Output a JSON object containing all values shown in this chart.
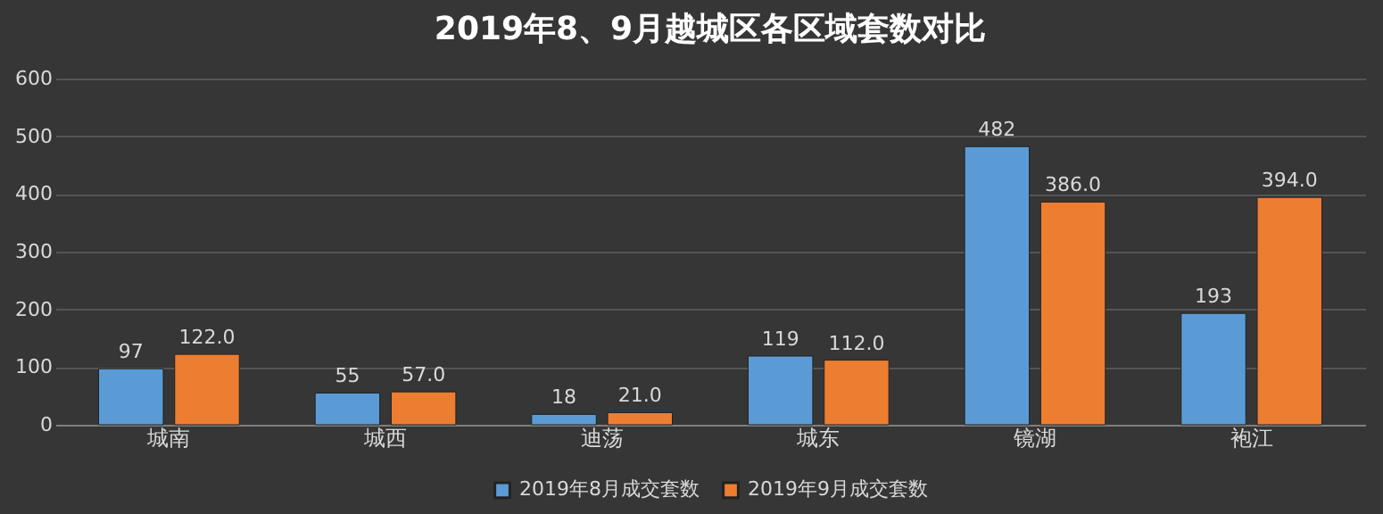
{
  "chart_data": {
    "type": "bar",
    "title": "2019年8、9月越城区各区域套数对比",
    "categories": [
      "城南",
      "城西",
      "迪荡",
      "城东",
      "镜湖",
      "袍江"
    ],
    "series": [
      {
        "name": "2019年8月成交套数",
        "color": "#5b9bd5",
        "values": [
          97,
          55,
          18,
          119,
          482,
          193
        ],
        "value_labels": [
          "97",
          "55",
          "18",
          "119",
          "482",
          "193"
        ]
      },
      {
        "name": "2019年9月成交套数",
        "color": "#ed7d31",
        "values": [
          122,
          57,
          21,
          112,
          386,
          394
        ],
        "value_labels": [
          "122.0",
          "57.0",
          "21.0",
          "112.0",
          "386.0",
          "394.0"
        ]
      }
    ],
    "ylim": [
      0,
      600
    ],
    "yticks": [
      0,
      100,
      200,
      300,
      400,
      500,
      600
    ],
    "grid": "y",
    "legend": "bottom"
  }
}
